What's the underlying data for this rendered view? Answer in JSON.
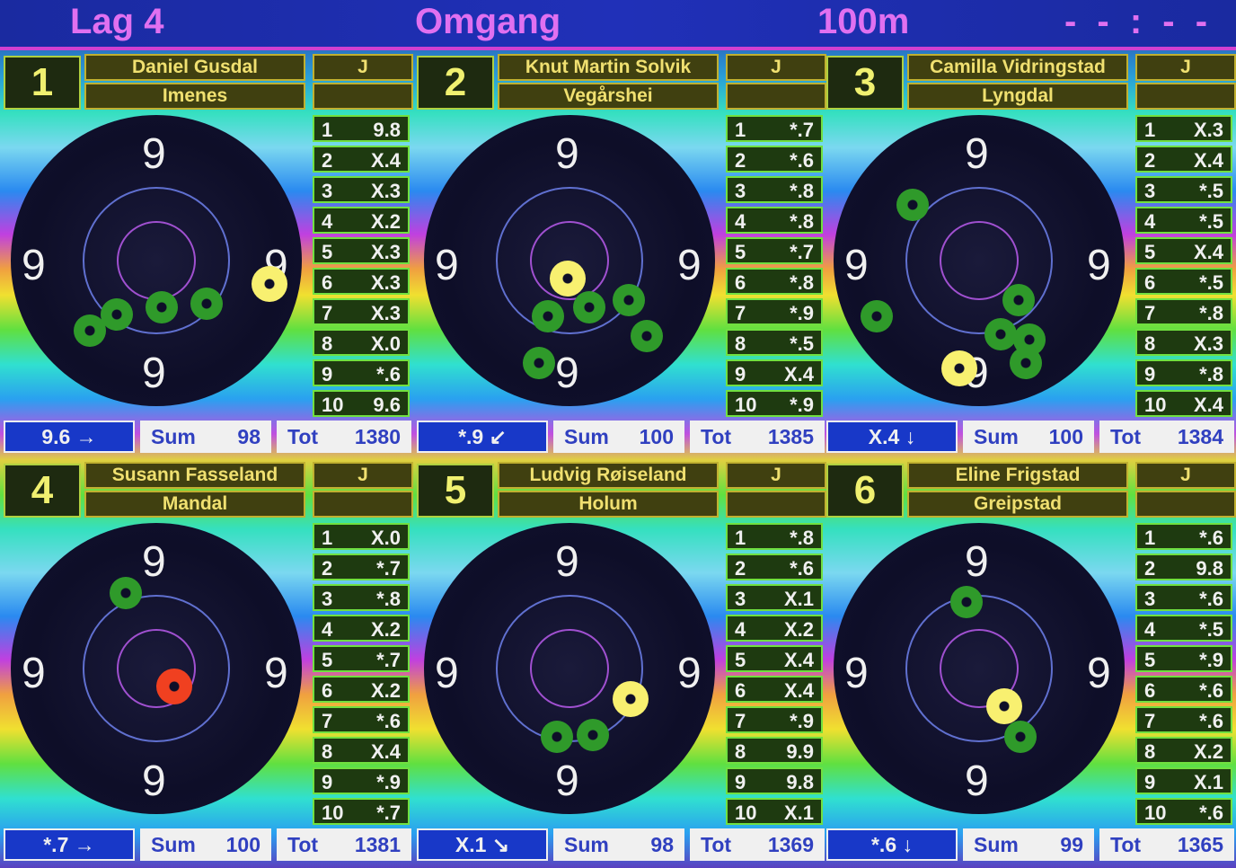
{
  "header": {
    "relay": "Lag 4",
    "title": "Omgang",
    "distance": "100m",
    "clock": "- - : - -"
  },
  "colors": {
    "header_bg": "#1a2aa0",
    "header_text": "#e070f0",
    "name_text": "#f0e070",
    "shot_ring": "#2f9a2a",
    "last_shot": "#f8f070"
  },
  "lanes": [
    {
      "number": "1",
      "name": "Daniel Gusdal",
      "club": "Imenes",
      "class": "J",
      "shots": [
        [
          "1",
          "9.8"
        ],
        [
          "2",
          "X.4"
        ],
        [
          "3",
          "X.3"
        ],
        [
          "4",
          "X.2"
        ],
        [
          "5",
          "X.3"
        ],
        [
          "6",
          "X.3"
        ],
        [
          "7",
          "X.3"
        ],
        [
          "8",
          "X.0"
        ],
        [
          "9",
          "*.6"
        ],
        [
          "10",
          "9.6"
        ]
      ],
      "last": "9.6 →",
      "sum_label": "Sum",
      "sum": "98",
      "tot_label": "Tot",
      "tot": "1380"
    },
    {
      "number": "2",
      "name": "Knut Martin Solvik",
      "club": "Vegårshei",
      "class": "J",
      "shots": [
        [
          "1",
          "*.7"
        ],
        [
          "2",
          "*.6"
        ],
        [
          "3",
          "*.8"
        ],
        [
          "4",
          "*.8"
        ],
        [
          "5",
          "*.7"
        ],
        [
          "6",
          "*.8"
        ],
        [
          "7",
          "*.9"
        ],
        [
          "8",
          "*.5"
        ],
        [
          "9",
          "X.4"
        ],
        [
          "10",
          "*.9"
        ]
      ],
      "last": "*.9 ↙",
      "sum_label": "Sum",
      "sum": "100",
      "tot_label": "Tot",
      "tot": "1385"
    },
    {
      "number": "3",
      "name": "Camilla Vidringstad",
      "club": "Lyngdal",
      "class": "J",
      "shots": [
        [
          "1",
          "X.3"
        ],
        [
          "2",
          "X.4"
        ],
        [
          "3",
          "*.5"
        ],
        [
          "4",
          "*.5"
        ],
        [
          "5",
          "X.4"
        ],
        [
          "6",
          "*.5"
        ],
        [
          "7",
          "*.8"
        ],
        [
          "8",
          "X.3"
        ],
        [
          "9",
          "*.8"
        ],
        [
          "10",
          "X.4"
        ]
      ],
      "last": "X.4 ↓",
      "sum_label": "Sum",
      "sum": "100",
      "tot_label": "Tot",
      "tot": "1384"
    },
    {
      "number": "4",
      "name": "Susann Fasseland",
      "club": "Mandal",
      "class": "J",
      "shots": [
        [
          "1",
          "X.0"
        ],
        [
          "2",
          "*.7"
        ],
        [
          "3",
          "*.8"
        ],
        [
          "4",
          "X.2"
        ],
        [
          "5",
          "*.7"
        ],
        [
          "6",
          "X.2"
        ],
        [
          "7",
          "*.6"
        ],
        [
          "8",
          "X.4"
        ],
        [
          "9",
          "*.9"
        ],
        [
          "10",
          "*.7"
        ]
      ],
      "last": "*.7 →",
      "sum_label": "Sum",
      "sum": "100",
      "tot_label": "Tot",
      "tot": "1381"
    },
    {
      "number": "5",
      "name": "Ludvig Røiseland",
      "club": "Holum",
      "class": "J",
      "shots": [
        [
          "1",
          "*.8"
        ],
        [
          "2",
          "*.6"
        ],
        [
          "3",
          "X.1"
        ],
        [
          "4",
          "X.2"
        ],
        [
          "5",
          "X.4"
        ],
        [
          "6",
          "X.4"
        ],
        [
          "7",
          "*.9"
        ],
        [
          "8",
          "9.9"
        ],
        [
          "9",
          "9.8"
        ],
        [
          "10",
          "X.1"
        ]
      ],
      "last": "X.1 ↘",
      "sum_label": "Sum",
      "sum": "98",
      "tot_label": "Tot",
      "tot": "1369"
    },
    {
      "number": "6",
      "name": "Eline Frigstad",
      "club": "Greipstad",
      "class": "J",
      "shots": [
        [
          "1",
          "*.6"
        ],
        [
          "2",
          "9.8"
        ],
        [
          "3",
          "*.6"
        ],
        [
          "4",
          "*.5"
        ],
        [
          "5",
          "*.9"
        ],
        [
          "6",
          "*.6"
        ],
        [
          "7",
          "*.6"
        ],
        [
          "8",
          "X.2"
        ],
        [
          "9",
          "X.1"
        ],
        [
          "10",
          "*.6"
        ]
      ],
      "last": "*.6 ↓",
      "sum_label": "Sum",
      "sum": "99",
      "tot_label": "Tot",
      "tot": "1365"
    }
  ],
  "target_digit": "9"
}
